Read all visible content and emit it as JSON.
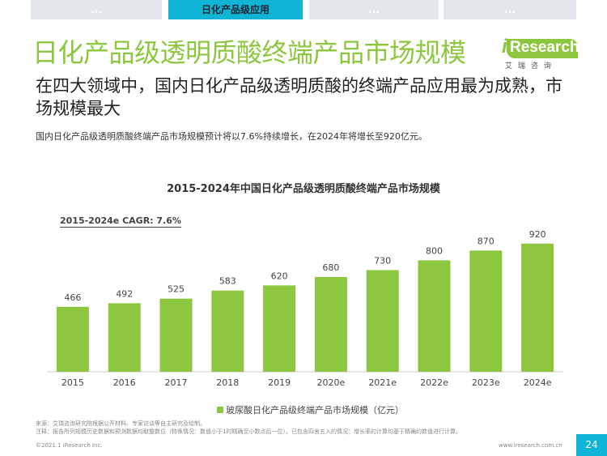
{
  "tabs": [
    {
      "label": "...",
      "active": false
    },
    {
      "label": "日化产品级应用",
      "active": true
    },
    {
      "label": "...",
      "active": false
    },
    {
      "label": "...",
      "active": false
    }
  ],
  "title": "日化产品级透明质酸终端产品市场规模",
  "logo": {
    "i": "i",
    "brand": "Research",
    "cn": "艾瑞咨询"
  },
  "subtitle": "在四大领域中，国内日化产品级透明质酸的终端产品应用最为成熟，市场规模最大",
  "summary": "国内日化产品级透明质酸终端产品市场规模预计将以7.6%持续增长，在2024年将增长至920亿元。",
  "cagr": "2015-2024e CAGR: 7.6%",
  "chart_data": {
    "type": "bar",
    "title": "2015-2024年中国日化产品级透明质酸终端产品市场规模",
    "categories": [
      "2015",
      "2016",
      "2017",
      "2018",
      "2019",
      "2020e",
      "2021e",
      "2022e",
      "2023e",
      "2024e"
    ],
    "series": [
      {
        "name": "玻尿酸日化产品级终端产品市场规模（亿元）",
        "values": [
          466,
          492,
          525,
          583,
          620,
          680,
          730,
          800,
          870,
          920
        ],
        "color": "#8dc63f"
      }
    ],
    "ylim": [
      0,
      1000
    ],
    "grid": false,
    "legend": "bottom"
  },
  "notes": [
    "来源：艾瑞咨询研究院根据公开材料、专家访谈等自主研究及绘制。",
    "注释：报告所列规模历史数据和预测数据均取整数位（特殊情况：数值小于1时精确至小数点后一位），已包含四舍五入的情况；增长率的计算均基于精确的数值进行计算。"
  ],
  "footer": {
    "copyright": "©2021.1 iResearch Inc.",
    "website": "www.iresearch.com.cn",
    "page": "24"
  },
  "colors": {
    "accent": "#8dc63f",
    "tab_active": "#10b5d6",
    "tab_inactive": "#e3e6ea"
  }
}
